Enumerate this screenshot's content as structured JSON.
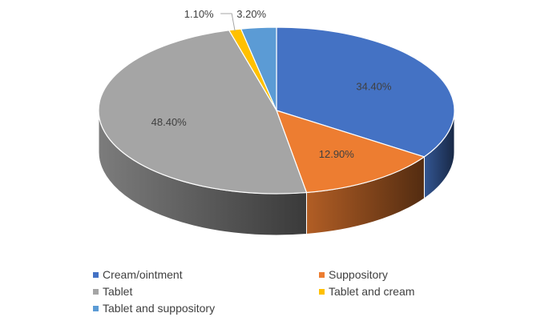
{
  "chart_data": {
    "type": "pie",
    "style": "3d",
    "title": "",
    "legend_position": "bottom",
    "slices": [
      {
        "name": "Cream/ointment",
        "value": 34.4,
        "label": "34.40%",
        "color": "#4472C4"
      },
      {
        "name": "Suppository",
        "value": 12.9,
        "label": "12.90%",
        "color": "#ED7D31"
      },
      {
        "name": "Tablet",
        "value": 48.4,
        "label": "48.40%",
        "color": "#A5A5A5"
      },
      {
        "name": "Tablet and cream",
        "value": 1.1,
        "label": "1.10%",
        "color": "#FFC000"
      },
      {
        "name": "Tablet and suppository",
        "value": 3.2,
        "label": "3.20%",
        "color": "#5B9BD5"
      }
    ]
  }
}
